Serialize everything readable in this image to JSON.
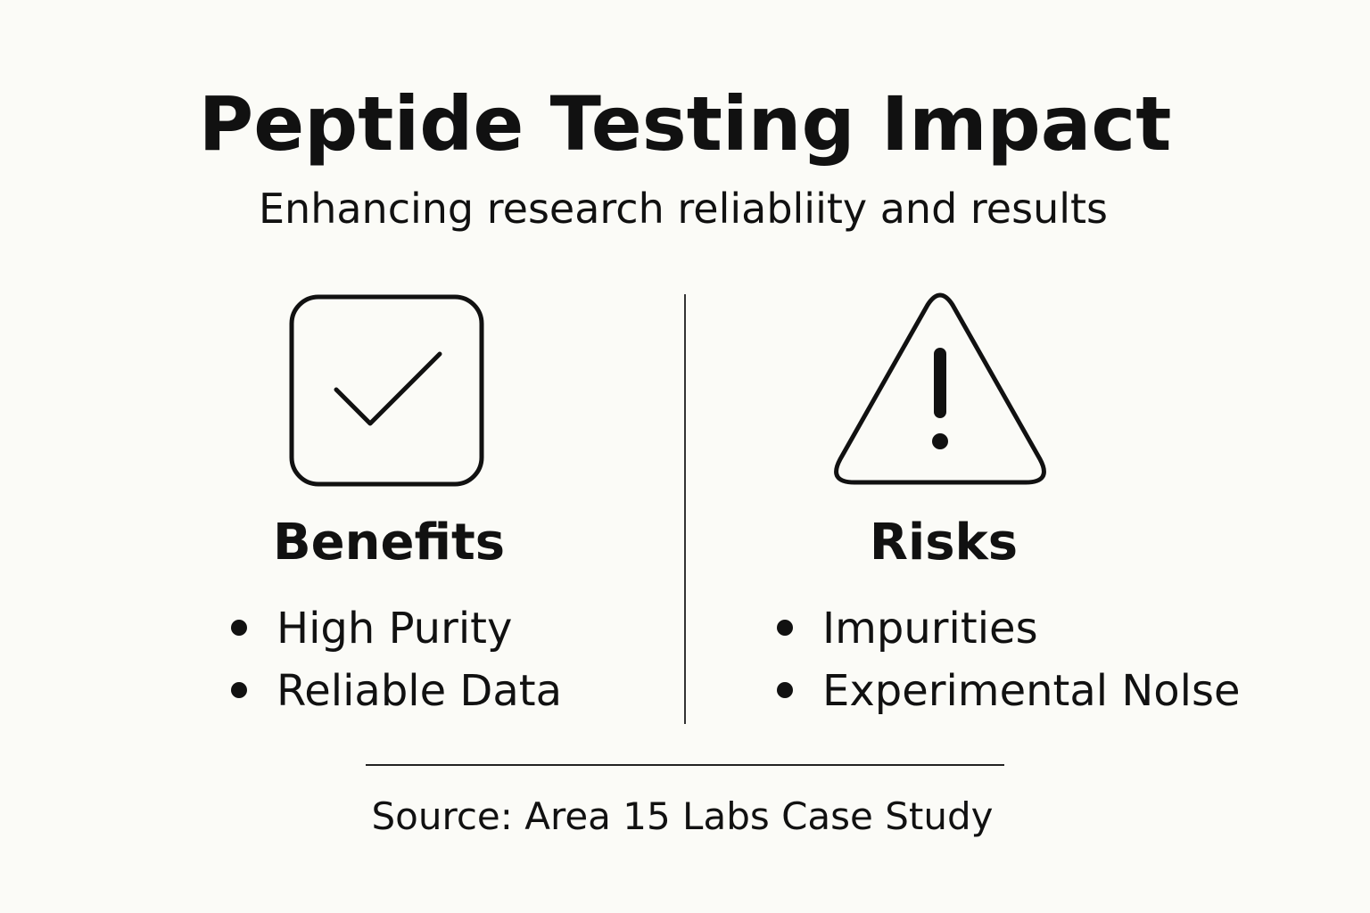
{
  "header": {
    "title": "Peptide Testing Impact",
    "subtitle": "Enhancing research reliabliity and results"
  },
  "columns": [
    {
      "heading": "Benefits",
      "items": [
        "High Purity",
        "Reliable Data"
      ]
    },
    {
      "heading": "Risks",
      "items": [
        "Impurities",
        "Experimental Nolse"
      ]
    }
  ],
  "footer": {
    "source": "Source: Area 15 Labs Case Study"
  }
}
